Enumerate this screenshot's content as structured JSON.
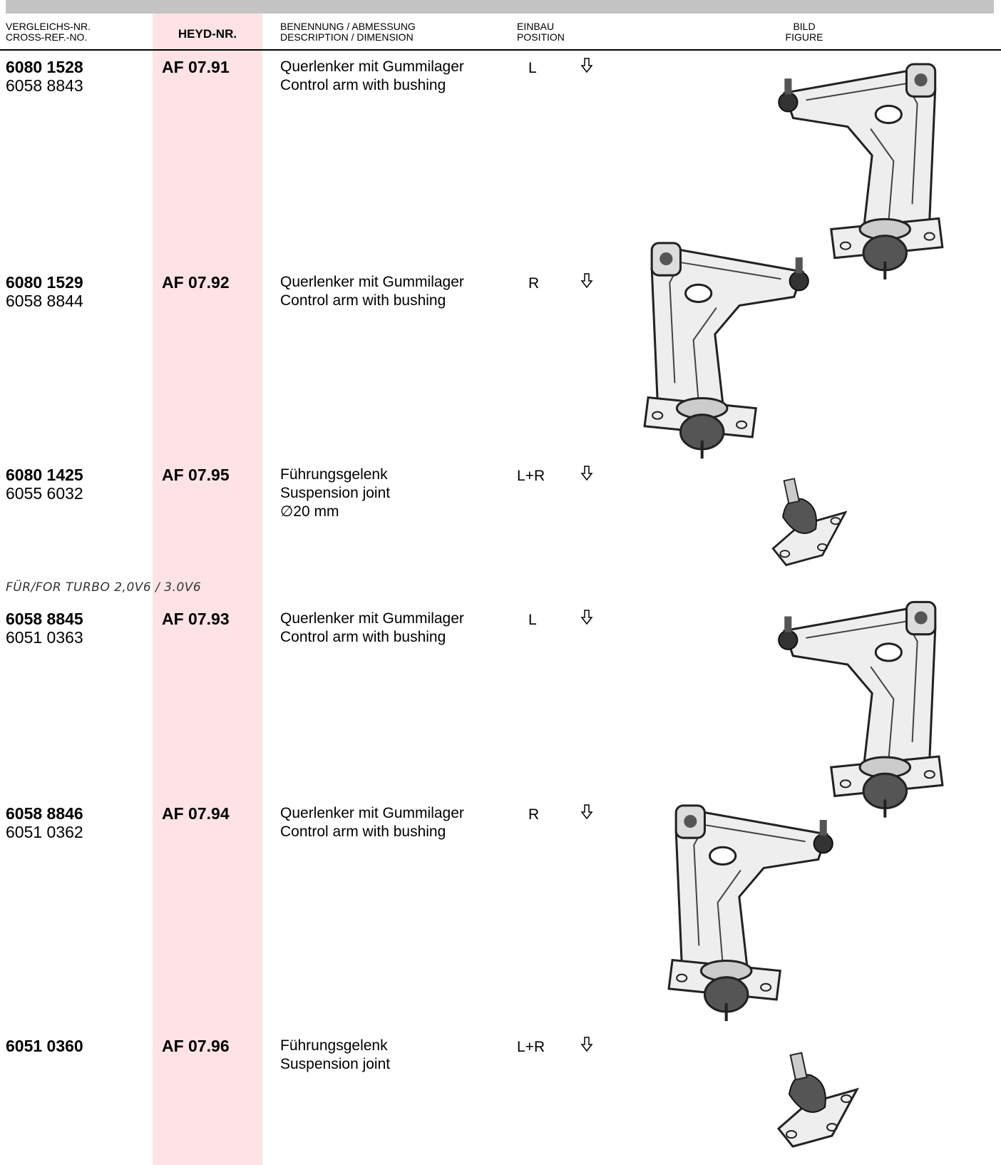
{
  "header": {
    "col1": [
      "VERGLEICHS-NR.",
      "CROSS-REF.-NO."
    ],
    "col2": "HEYD-NR.",
    "col3": [
      "BENENNUNG / ABMESSUNG",
      "DESCRIPTION / DIMENSION"
    ],
    "col4": [
      "EINBAU",
      "POSITION"
    ],
    "col5": [
      "BILD",
      "FIGURE"
    ]
  },
  "note": "FÜR/FOR TURBO 2,0V6 / 3.0V6",
  "rows": [
    {
      "ref": "6080 1528",
      "ref2": "6058 8843",
      "heyd": "AF 07.91",
      "desc": [
        "Querlenker mit Gummilager",
        "Control arm with bushing"
      ],
      "pos": "L"
    },
    {
      "ref": "6080 1529",
      "ref2": "6058 8844",
      "heyd": "AF 07.92",
      "desc": [
        "Querlenker mit Gummilager",
        "Control arm with bushing"
      ],
      "pos": "R"
    },
    {
      "ref": "6080 1425",
      "ref2": "6055 6032",
      "heyd": "AF 07.95",
      "desc": [
        "Führungsgelenk",
        "Suspension joint",
        "∅20 mm"
      ],
      "pos": "L+R"
    },
    {
      "ref": "6058 8845",
      "ref2": "6051 0363",
      "heyd": "AF 07.93",
      "desc": [
        "Querlenker mit Gummilager",
        "Control arm with bushing"
      ],
      "pos": "L"
    },
    {
      "ref": "6058 8846",
      "ref2": "6051 0362",
      "heyd": "AF 07.94",
      "desc": [
        "Querlenker mit Gummilager",
        "Control arm with bushing"
      ],
      "pos": "R"
    },
    {
      "ref": "6051 0360",
      "heyd": "AF 07.96",
      "desc": [
        "Führungsgelenk",
        "Suspension joint"
      ],
      "pos": "L+R"
    }
  ]
}
